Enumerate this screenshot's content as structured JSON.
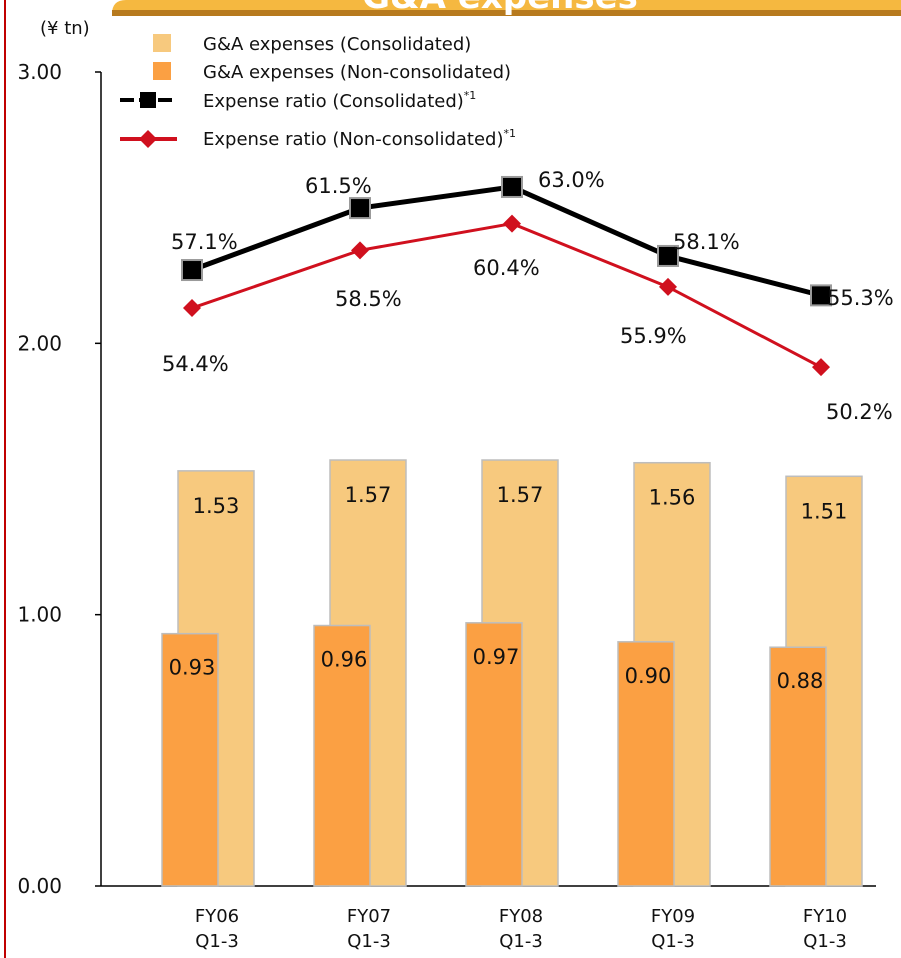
{
  "header": {
    "title": "G&A expenses"
  },
  "colors": {
    "consolidated_bar": "#F7C97E",
    "nonconsolidated_bar": "#FBA043",
    "ratio_consolidated": "#000000",
    "ratio_nonconsolidated": "#D0101E",
    "frame_red": "#C00000",
    "header_orange": "#F0A020"
  },
  "chart_data": {
    "type": "bar",
    "unit_label": "(¥ tn)",
    "categories": [
      {
        "line1": "FY06",
        "line2": "Q1-3"
      },
      {
        "line1": "FY07",
        "line2": "Q1-3"
      },
      {
        "line1": "FY08",
        "line2": "Q1-3"
      },
      {
        "line1": "FY09",
        "line2": "Q1-3"
      },
      {
        "line1": "FY10",
        "line2": "Q1-3"
      }
    ],
    "ylim": [
      0,
      3
    ],
    "yticks": [
      "0.00",
      "1.00",
      "2.00",
      "3.00"
    ],
    "grid": false,
    "legend_position": "top-left",
    "series": [
      {
        "name": "G&A expenses (Consolidated)",
        "kind": "bar",
        "values": [
          1.53,
          1.57,
          1.57,
          1.56,
          1.51
        ],
        "labels": [
          "1.53",
          "1.57",
          "1.57",
          "1.56",
          "1.51"
        ]
      },
      {
        "name": "G&A expenses (Non-consolidated)",
        "kind": "bar",
        "values": [
          0.93,
          0.96,
          0.97,
          0.9,
          0.88
        ],
        "labels": [
          "0.93",
          "0.96",
          "0.97",
          "0.90",
          "0.88"
        ]
      },
      {
        "name": "Expense ratio (Consolidated)",
        "footnote": "*1",
        "kind": "line",
        "marker": "square",
        "values": [
          57.1,
          61.5,
          63.0,
          58.1,
          55.3
        ],
        "labels": [
          "57.1%",
          "61.5%",
          "63.0%",
          "58.1%",
          "55.3%"
        ]
      },
      {
        "name": "Expense ratio (Non-consolidated)",
        "footnote": "*1",
        "kind": "line",
        "marker": "diamond",
        "values": [
          54.4,
          58.5,
          60.4,
          55.9,
          50.2
        ],
        "labels": [
          "54.4%",
          "58.5%",
          "60.4%",
          "55.9%",
          "50.2%"
        ]
      }
    ]
  }
}
